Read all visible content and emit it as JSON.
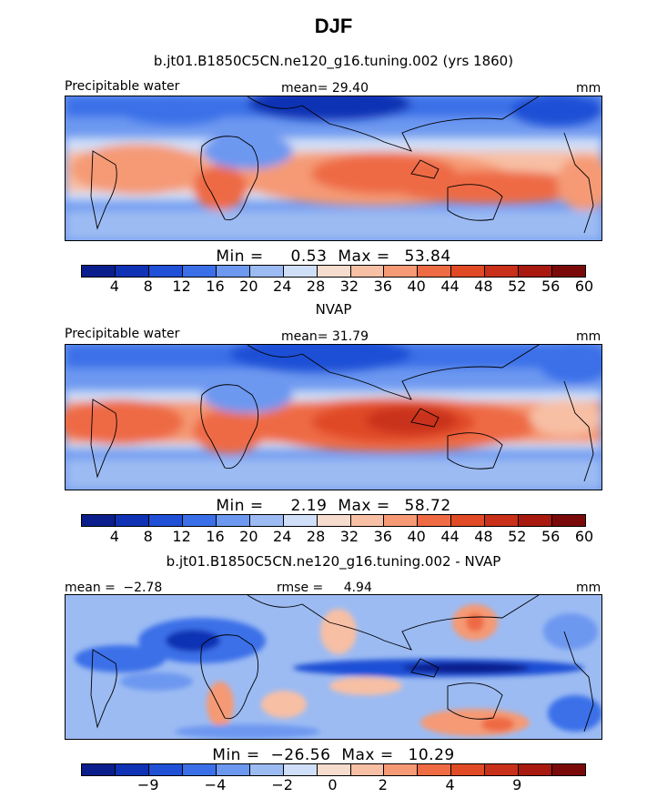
{
  "title": "DJF",
  "panel1": {
    "heading": "b.jt01.B1850C5CN.ne120_g16.tuning.002 (yrs 1860)",
    "variable": "Precipitable water",
    "stat_label": "mean=",
    "stat_value": "29.40",
    "units": "mm",
    "min_label": "Min =",
    "min_value": "0.53",
    "max_label": "Max =",
    "max_value": "53.84"
  },
  "panel2": {
    "heading": "NVAP",
    "variable": "Precipitable water",
    "stat_label": "mean=",
    "stat_value": "31.79",
    "units": "mm",
    "min_label": "Min =",
    "min_value": "2.19",
    "max_label": "Max =",
    "max_value": "58.72"
  },
  "panel3": {
    "heading": "b.jt01.B1850C5CN.ne120_g16.tuning.002 - NVAP",
    "mean_label": "mean =",
    "mean_value": "−2.78",
    "rmse_label": "rmse =",
    "rmse_value": "4.94",
    "units": "mm",
    "min_label": "Min =",
    "min_value": "−26.56",
    "max_label": "Max =",
    "max_value": "10.29"
  },
  "colorbar_abs": {
    "colors": [
      "#0a1e8c",
      "#0f33b4",
      "#1f50d6",
      "#3a6fe8",
      "#6d98f0",
      "#9cbbf3",
      "#d0dff8",
      "#f5dccd",
      "#f7bfa4",
      "#f59a75",
      "#ee6b44",
      "#e04a25",
      "#c9301a",
      "#a8190f",
      "#7a0a0a"
    ],
    "ticks": [
      "4",
      "8",
      "12",
      "16",
      "20",
      "24",
      "28",
      "32",
      "36",
      "40",
      "44",
      "48",
      "52",
      "56",
      "60"
    ]
  },
  "colorbar_diff": {
    "colors": [
      "#0a1e8c",
      "#0f33b4",
      "#1f50d6",
      "#3a6fe8",
      "#6d98f0",
      "#9cbbf3",
      "#d0dff8",
      "#f5dccd",
      "#f7bfa4",
      "#f59a75",
      "#ee6b44",
      "#e04a25",
      "#c9301a",
      "#a8190f",
      "#7a0a0a"
    ],
    "ticks": [
      "−9",
      "−4",
      "−2",
      "0",
      "2",
      "4",
      "9"
    ]
  }
}
